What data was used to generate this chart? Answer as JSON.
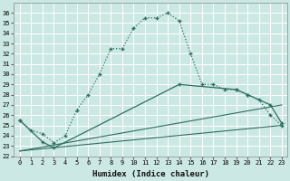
{
  "xlabel": "Humidex (Indice chaleur)",
  "xlim": [
    -0.5,
    23.5
  ],
  "ylim": [
    22,
    37
  ],
  "yticks": [
    22,
    23,
    24,
    25,
    26,
    27,
    28,
    29,
    30,
    31,
    32,
    33,
    34,
    35,
    36
  ],
  "xticks": [
    0,
    1,
    2,
    3,
    4,
    5,
    6,
    7,
    8,
    9,
    10,
    11,
    12,
    13,
    14,
    15,
    16,
    17,
    18,
    19,
    20,
    21,
    22,
    23
  ],
  "bg_color": "#cce8e4",
  "grid_color": "#ffffff",
  "line_color": "#2d6e62",
  "main_x": [
    0,
    1,
    2,
    3,
    4,
    5,
    6,
    7,
    8,
    9,
    10,
    11,
    12,
    13,
    14,
    15,
    16,
    17,
    18,
    19,
    20,
    21,
    22,
    23
  ],
  "main_y": [
    25.5,
    24.5,
    24.2,
    23.3,
    24.0,
    26.5,
    28.0,
    30.0,
    32.5,
    32.5,
    34.5,
    35.5,
    35.5,
    36.0,
    35.2,
    32.0,
    29.0,
    29.0,
    28.5,
    28.5,
    28.0,
    27.5,
    26.0,
    25.0
  ],
  "line2_x": [
    0,
    2,
    3,
    14,
    19,
    20,
    22,
    23
  ],
  "line2_y": [
    25.5,
    23.4,
    22.8,
    29.0,
    28.5,
    28.0,
    27.0,
    25.2
  ],
  "line3_x": [
    0,
    23
  ],
  "line3_y": [
    22.5,
    25.0
  ],
  "line4_x": [
    0,
    23
  ],
  "line4_y": [
    22.5,
    27.0
  ]
}
